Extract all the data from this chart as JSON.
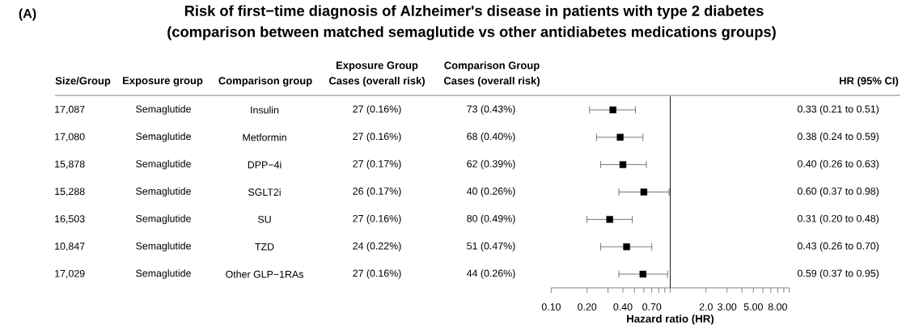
{
  "chart_data": {
    "type": "scatter",
    "orientation": "horizontal",
    "title": "Risk of first−time diagnosis of Alzheimer's disease in patients with type 2 diabetes",
    "subtitle": "(comparison between matched semaglutide vs other antidiabetes medications groups)",
    "xlabel": "Hazard ratio (HR)",
    "categories": [
      null,
      null,
      null,
      null,
      null,
      null,
      null
    ],
    "values": [
      0.33,
      0.38,
      0.4,
      0.6,
      0.31,
      0.43,
      0.59
    ],
    "errors": [
      [
        0.21,
        0.51
      ],
      [
        0.24,
        0.59
      ],
      [
        0.26,
        0.63
      ],
      [
        0.37,
        0.98
      ],
      [
        0.2,
        0.48
      ],
      [
        0.26,
        0.7
      ],
      [
        0.37,
        0.95
      ]
    ],
    "value_labels": [
      "0.33 (0.21 to 0.51)",
      "0.38 (0.24 to 0.59)",
      "0.40 (0.26 to 0.63)",
      "0.60 (0.37 to 0.98)",
      "0.31 (0.20 to 0.48)",
      "0.43 (0.26 to 0.70)",
      "0.59 (0.37 to 0.95)"
    ],
    "color": "#000000",
    "marker": "square",
    "log": "x",
    "xlim": [
      0.1,
      10
    ],
    "xticks": [
      {
        "value": 0.1,
        "label": "0.10"
      },
      {
        "value": 0.2,
        "label": "0.20"
      },
      {
        "value": 0.3,
        "label": null
      },
      {
        "value": 0.4,
        "label": "0.40"
      },
      {
        "value": 0.5,
        "label": null
      },
      {
        "value": 0.6,
        "label": null
      },
      {
        "value": 0.7,
        "label": "0.70"
      },
      {
        "value": 0.8,
        "label": null
      },
      {
        "value": 0.9,
        "label": null
      },
      {
        "value": 1,
        "label": null
      },
      {
        "value": 2,
        "label": "2.0"
      },
      {
        "value": 3,
        "label": "3.00"
      },
      {
        "value": 4,
        "label": null
      },
      {
        "value": 5,
        "label": "5.00"
      },
      {
        "value": 6,
        "label": null
      },
      {
        "value": 7,
        "label": null
      },
      {
        "value": 8,
        "label": "8.00"
      },
      {
        "value": 9,
        "label": null
      },
      {
        "value": 10,
        "label": null
      }
    ],
    "ref_lines": [
      {
        "axis": "x",
        "value": 1,
        "color": "#000000"
      }
    ],
    "annotations": [
      "(A)",
      "Size/Group",
      "Exposure group",
      "Comparison group",
      "Exposure Group",
      "Cases (overall risk)",
      "Comparison Group",
      "Cases (overall risk)",
      "HR (95% CI)",
      "17,087",
      "Semaglutide",
      "Insulin",
      "27 (0.16%)",
      "73 (0.43%)",
      "17,080",
      "Semaglutide",
      "Metformin",
      "27 (0.16%)",
      "68 (0.40%)",
      "15,878",
      "Semaglutide",
      "DPP−4i",
      "27 (0.17%)",
      "62 (0.39%)",
      "15,288",
      "Semaglutide",
      "SGLT2i",
      "26 (0.17%)",
      "40 (0.26%)",
      "16,503",
      "Semaglutide",
      "SU",
      "27 (0.16%)",
      "80 (0.49%)",
      "10,847",
      "Semaglutide",
      "TZD",
      "24 (0.22%)",
      "51 (0.47%)",
      "17,029",
      "Semaglutide",
      "Other GLP−1RAs",
      "27 (0.16%)",
      "44 (0.26%)"
    ]
  }
}
